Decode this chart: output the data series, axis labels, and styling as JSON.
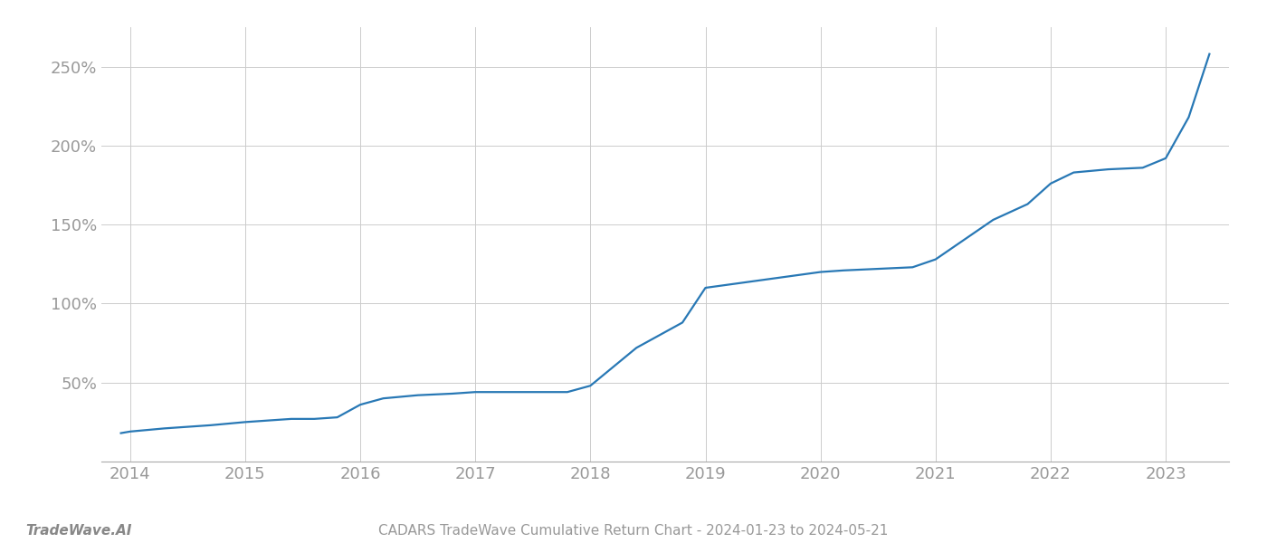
{
  "title": "CADARS TradeWave Cumulative Return Chart - 2024-01-23 to 2024-05-21",
  "footer_left": "TradeWave.AI",
  "line_color": "#2878b5",
  "background_color": "#ffffff",
  "grid_color": "#cccccc",
  "x_years": [
    2014,
    2015,
    2016,
    2017,
    2018,
    2019,
    2020,
    2021,
    2022,
    2023
  ],
  "data_x": [
    2013.92,
    2014.0,
    2014.15,
    2014.3,
    2014.5,
    2014.7,
    2014.85,
    2015.0,
    2015.2,
    2015.4,
    2015.6,
    2015.8,
    2016.0,
    2016.2,
    2016.5,
    2016.8,
    2017.0,
    2017.2,
    2017.5,
    2017.8,
    2018.0,
    2018.2,
    2018.4,
    2018.6,
    2018.8,
    2019.0,
    2019.2,
    2019.4,
    2019.6,
    2019.8,
    2020.0,
    2020.2,
    2020.5,
    2020.8,
    2021.0,
    2021.2,
    2021.5,
    2021.8,
    2022.0,
    2022.2,
    2022.5,
    2022.8,
    2023.0,
    2023.2,
    2023.38
  ],
  "data_y": [
    18,
    19,
    20,
    21,
    22,
    23,
    24,
    25,
    26,
    27,
    27,
    28,
    36,
    40,
    42,
    43,
    44,
    44,
    44,
    44,
    48,
    60,
    72,
    80,
    88,
    110,
    112,
    114,
    116,
    118,
    120,
    121,
    122,
    123,
    128,
    138,
    153,
    163,
    176,
    183,
    185,
    186,
    192,
    218,
    258
  ],
  "ylim": [
    0,
    275
  ],
  "xlim": [
    2013.75,
    2023.55
  ],
  "yticks": [
    50,
    100,
    150,
    200,
    250
  ],
  "ytick_labels": [
    "50%",
    "100%",
    "150%",
    "200%",
    "250%"
  ],
  "line_width": 1.6,
  "title_fontsize": 11,
  "tick_fontsize": 13,
  "footer_fontsize": 11
}
